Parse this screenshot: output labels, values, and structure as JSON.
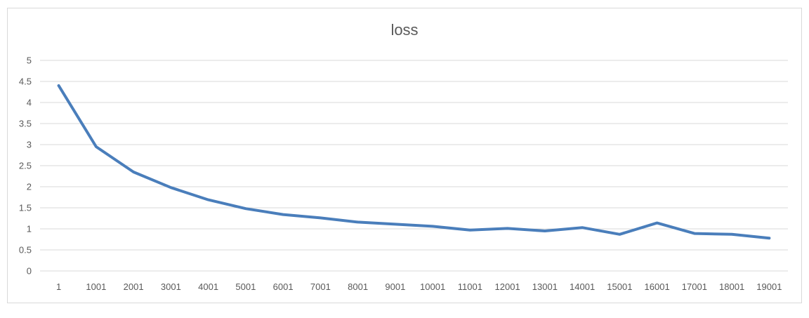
{
  "chart_data": {
    "type": "line",
    "title": "loss",
    "xlabel": "",
    "ylabel": "",
    "categories": [
      "1",
      "1001",
      "2001",
      "3001",
      "4001",
      "5001",
      "6001",
      "7001",
      "8001",
      "9001",
      "10001",
      "11001",
      "12001",
      "13001",
      "14001",
      "15001",
      "16001",
      "17001",
      "18001",
      "19001"
    ],
    "series": [
      {
        "values": [
          4.4,
          2.95,
          2.35,
          1.98,
          1.69,
          1.48,
          1.34,
          1.26,
          1.16,
          1.11,
          1.06,
          0.97,
          1.01,
          0.95,
          1.03,
          0.87,
          1.14,
          0.89,
          0.87,
          0.78
        ]
      }
    ],
    "ylim": [
      0,
      5
    ],
    "yticks": [
      "0",
      "0.5",
      "1",
      "1.5",
      "2",
      "2.5",
      "3",
      "3.5",
      "4",
      "4.5",
      "5"
    ],
    "grid": true,
    "legend": "none",
    "colors": {
      "series": "#4a7ebb",
      "grid": "#d9d9d9",
      "text": "#595959"
    }
  }
}
